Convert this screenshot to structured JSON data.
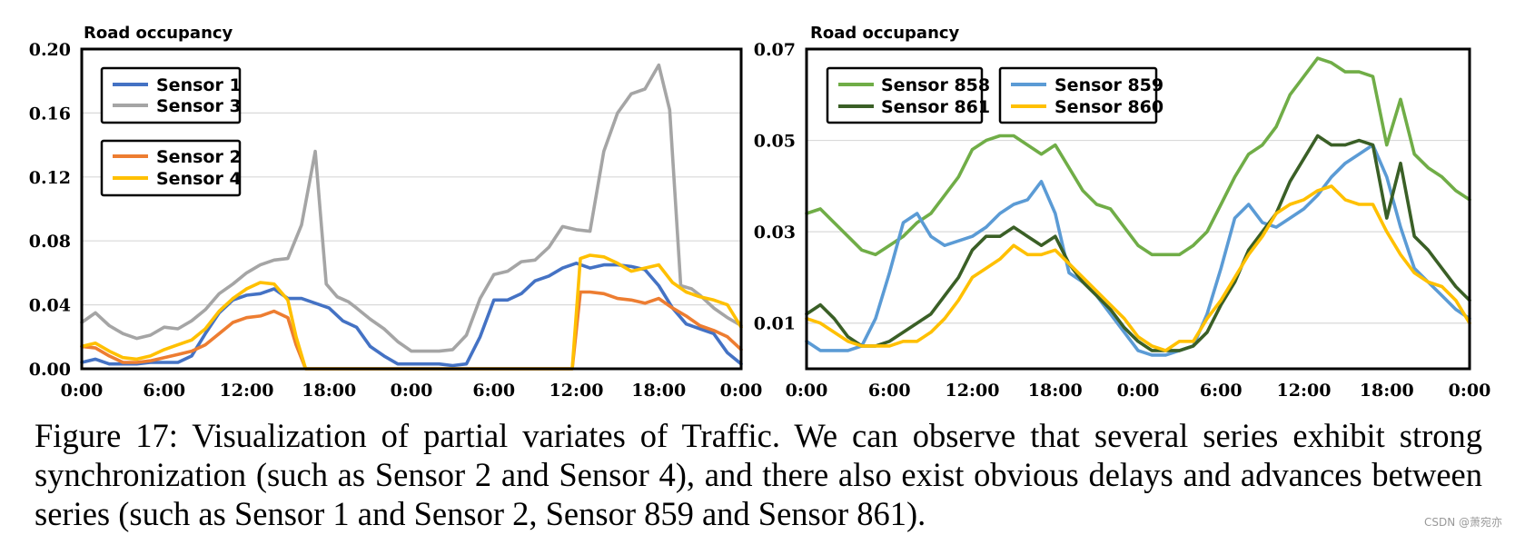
{
  "chart_data": [
    {
      "type": "line",
      "ylabel": "Road occupancy",
      "ylim": [
        0,
        0.2
      ],
      "yticks": [
        "0.00",
        "0.04",
        "0.08",
        "0.12",
        "0.16",
        "0.20"
      ],
      "ytick_values": [
        0,
        0.04,
        0.08,
        0.12,
        0.16,
        0.2
      ],
      "xticks": [
        "0:00",
        "6:00",
        "12:00",
        "18:00",
        "0:00",
        "6:00",
        "12:00",
        "18:00",
        "0:00"
      ],
      "x_hours": [
        0,
        6,
        12,
        18,
        24,
        30,
        36,
        42,
        48
      ],
      "legend_groups": [
        [
          "Sensor 1",
          "Sensor 3"
        ],
        [
          "Sensor 2",
          "Sensor 4"
        ]
      ],
      "series": [
        {
          "name": "Sensor 1",
          "color": "#4472c4",
          "x": [
            0,
            1,
            2,
            3,
            4,
            5,
            6,
            7,
            8,
            9,
            10,
            11,
            12,
            13,
            14,
            15,
            16,
            17,
            18,
            19,
            20,
            21,
            22,
            23,
            24,
            25,
            26,
            27,
            28,
            29,
            30,
            31,
            32,
            33,
            34,
            35,
            36,
            37,
            38,
            39,
            40,
            41,
            42,
            43,
            44,
            45,
            46,
            47,
            48
          ],
          "values": [
            0.004,
            0.006,
            0.003,
            0.003,
            0.003,
            0.004,
            0.004,
            0.004,
            0.008,
            0.022,
            0.035,
            0.043,
            0.046,
            0.047,
            0.05,
            0.044,
            0.044,
            0.041,
            0.038,
            0.03,
            0.026,
            0.014,
            0.008,
            0.003,
            0.003,
            0.003,
            0.003,
            0.002,
            0.003,
            0.02,
            0.043,
            0.043,
            0.047,
            0.055,
            0.058,
            0.063,
            0.066,
            0.063,
            0.065,
            0.065,
            0.064,
            0.062,
            0.052,
            0.038,
            0.028,
            0.025,
            0.022,
            0.01,
            0.003
          ]
        },
        {
          "name": "Sensor 3",
          "color": "#a5a5a5",
          "x": [
            0,
            1,
            2,
            3,
            4,
            5,
            6,
            7,
            8,
            9,
            10,
            11,
            12,
            13,
            14,
            15,
            16,
            17,
            17.8,
            18.6,
            19.4,
            20,
            21,
            22,
            23,
            24,
            25,
            26,
            27,
            28,
            29,
            30,
            31,
            32,
            33,
            34,
            35,
            36,
            37,
            38,
            39,
            40,
            41,
            42,
            42.8,
            43.6,
            44.4,
            45,
            46,
            47,
            48
          ],
          "values": [
            0.029,
            0.035,
            0.027,
            0.022,
            0.019,
            0.021,
            0.026,
            0.025,
            0.03,
            0.037,
            0.047,
            0.053,
            0.06,
            0.065,
            0.068,
            0.069,
            0.09,
            0.136,
            0.053,
            0.045,
            0.042,
            0.038,
            0.031,
            0.025,
            0.017,
            0.011,
            0.011,
            0.011,
            0.012,
            0.021,
            0.044,
            0.059,
            0.061,
            0.067,
            0.068,
            0.076,
            0.089,
            0.087,
            0.086,
            0.136,
            0.16,
            0.172,
            0.175,
            0.19,
            0.162,
            0.052,
            0.05,
            0.046,
            0.038,
            0.032,
            0.027
          ]
        },
        {
          "name": "Sensor 2",
          "color": "#ed7d31",
          "x": [
            0,
            1,
            2,
            3,
            4,
            5,
            6,
            7,
            8,
            9,
            10,
            11,
            12,
            13,
            14,
            15,
            15.6,
            16.3,
            35.7,
            36.3,
            37,
            38,
            39,
            40,
            41,
            42,
            43,
            44,
            45,
            46,
            47,
            48
          ],
          "values": [
            0.014,
            0.013,
            0.008,
            0.004,
            0.004,
            0.005,
            0.007,
            0.009,
            0.011,
            0.015,
            0.022,
            0.029,
            0.032,
            0.033,
            0.036,
            0.032,
            0.015,
            0,
            0,
            0.048,
            0.048,
            0.047,
            0.044,
            0.043,
            0.041,
            0.044,
            0.038,
            0.033,
            0.027,
            0.024,
            0.02,
            0.012
          ]
        },
        {
          "name": "Sensor 4",
          "color": "#ffc000",
          "x": [
            0,
            1,
            2,
            3,
            4,
            5,
            6,
            7,
            8,
            9,
            10,
            11,
            12,
            13,
            14,
            15,
            15.6,
            16.3,
            35.7,
            36.3,
            37,
            38,
            39,
            40,
            41,
            42,
            43,
            44,
            45,
            46,
            47,
            48
          ],
          "values": [
            0.014,
            0.016,
            0.011,
            0.007,
            0.006,
            0.008,
            0.012,
            0.015,
            0.018,
            0.025,
            0.036,
            0.044,
            0.05,
            0.054,
            0.053,
            0.043,
            0.02,
            0,
            0,
            0.069,
            0.071,
            0.07,
            0.066,
            0.061,
            0.063,
            0.065,
            0.054,
            0.048,
            0.045,
            0.043,
            0.04,
            0.026
          ]
        }
      ]
    },
    {
      "type": "line",
      "ylabel": "Road occupancy",
      "ylim": [
        0,
        0.07
      ],
      "yticks": [
        "0.01",
        "0.03",
        "0.05",
        "0.07"
      ],
      "ytick_values": [
        0.01,
        0.03,
        0.05,
        0.07
      ],
      "xticks": [
        "0:00",
        "6:00",
        "12:00",
        "18:00",
        "0:00",
        "6:00",
        "12:00",
        "18:00",
        "0:00"
      ],
      "x_hours": [
        0,
        6,
        12,
        18,
        24,
        30,
        36,
        42,
        48
      ],
      "legend_groups": [
        [
          "Sensor 858",
          "Sensor 861"
        ],
        [
          "Sensor 859",
          "Sensor 860"
        ]
      ],
      "series": [
        {
          "name": "Sensor 858",
          "color": "#70ad47",
          "x": [
            0,
            1,
            2,
            3,
            4,
            5,
            6,
            7,
            8,
            9,
            10,
            11,
            12,
            13,
            14,
            15,
            16,
            17,
            18,
            19,
            20,
            21,
            22,
            23,
            24,
            25,
            26,
            27,
            28,
            29,
            30,
            31,
            32,
            33,
            34,
            35,
            36,
            37,
            38,
            39,
            40,
            41,
            42,
            43,
            44,
            45,
            46,
            47,
            48
          ],
          "values": [
            0.034,
            0.035,
            0.032,
            0.029,
            0.026,
            0.025,
            0.027,
            0.029,
            0.032,
            0.034,
            0.038,
            0.042,
            0.048,
            0.05,
            0.051,
            0.051,
            0.049,
            0.047,
            0.049,
            0.044,
            0.039,
            0.036,
            0.035,
            0.031,
            0.027,
            0.025,
            0.025,
            0.025,
            0.027,
            0.03,
            0.036,
            0.042,
            0.047,
            0.049,
            0.053,
            0.06,
            0.064,
            0.068,
            0.067,
            0.065,
            0.065,
            0.064,
            0.049,
            0.059,
            0.047,
            0.044,
            0.042,
            0.039,
            0.037
          ]
        },
        {
          "name": "Sensor 859",
          "color": "#5b9bd5",
          "x": [
            0,
            1,
            2,
            3,
            4,
            5,
            6,
            7,
            8,
            9,
            10,
            11,
            12,
            13,
            14,
            15,
            16,
            17,
            18,
            19,
            20,
            21,
            22,
            23,
            24,
            25,
            26,
            27,
            28,
            29,
            30,
            31,
            32,
            33,
            34,
            35,
            36,
            37,
            38,
            39,
            40,
            41,
            42,
            43,
            44,
            45,
            46,
            47,
            48
          ],
          "values": [
            0.006,
            0.004,
            0.004,
            0.004,
            0.005,
            0.011,
            0.021,
            0.032,
            0.034,
            0.029,
            0.027,
            0.028,
            0.029,
            0.031,
            0.034,
            0.036,
            0.037,
            0.041,
            0.034,
            0.021,
            0.019,
            0.016,
            0.012,
            0.008,
            0.004,
            0.003,
            0.003,
            0.004,
            0.005,
            0.012,
            0.022,
            0.033,
            0.036,
            0.032,
            0.031,
            0.033,
            0.035,
            0.038,
            0.042,
            0.045,
            0.047,
            0.049,
            0.042,
            0.031,
            0.022,
            0.019,
            0.016,
            0.013,
            0.011
          ]
        },
        {
          "name": "Sensor 861",
          "color": "#3a5f26",
          "x": [
            0,
            1,
            2,
            3,
            4,
            5,
            6,
            7,
            8,
            9,
            10,
            11,
            12,
            13,
            14,
            15,
            16,
            17,
            18,
            19,
            20,
            21,
            22,
            23,
            24,
            25,
            26,
            27,
            28,
            29,
            30,
            31,
            32,
            33,
            34,
            35,
            36,
            37,
            38,
            39,
            40,
            41,
            42,
            43,
            44,
            45,
            46,
            47,
            48
          ],
          "values": [
            0.012,
            0.014,
            0.011,
            0.007,
            0.005,
            0.005,
            0.006,
            0.008,
            0.01,
            0.012,
            0.016,
            0.02,
            0.026,
            0.029,
            0.029,
            0.031,
            0.029,
            0.027,
            0.029,
            0.023,
            0.019,
            0.016,
            0.013,
            0.009,
            0.006,
            0.004,
            0.004,
            0.004,
            0.005,
            0.008,
            0.014,
            0.019,
            0.026,
            0.03,
            0.034,
            0.041,
            0.046,
            0.051,
            0.049,
            0.049,
            0.05,
            0.049,
            0.033,
            0.045,
            0.029,
            0.026,
            0.022,
            0.018,
            0.015
          ]
        },
        {
          "name": "Sensor 860",
          "color": "#ffc000",
          "x": [
            0,
            1,
            2,
            3,
            4,
            5,
            6,
            7,
            8,
            9,
            10,
            11,
            12,
            13,
            14,
            15,
            16,
            17,
            18,
            19,
            20,
            21,
            22,
            23,
            24,
            25,
            26,
            27,
            28,
            29,
            30,
            31,
            32,
            33,
            34,
            35,
            36,
            37,
            38,
            39,
            40,
            41,
            42,
            43,
            44,
            45,
            46,
            47,
            48
          ],
          "values": [
            0.011,
            0.01,
            0.008,
            0.006,
            0.005,
            0.005,
            0.005,
            0.006,
            0.006,
            0.008,
            0.011,
            0.015,
            0.02,
            0.022,
            0.024,
            0.027,
            0.025,
            0.025,
            0.026,
            0.023,
            0.02,
            0.017,
            0.014,
            0.011,
            0.007,
            0.005,
            0.004,
            0.006,
            0.006,
            0.011,
            0.015,
            0.02,
            0.025,
            0.029,
            0.034,
            0.036,
            0.037,
            0.039,
            0.04,
            0.037,
            0.036,
            0.036,
            0.03,
            0.025,
            0.021,
            0.019,
            0.018,
            0.015,
            0.01
          ]
        }
      ]
    }
  ],
  "caption": {
    "text": "Figure 17: Visualization of partial variates of Traffic. We can observe that several series exhibit strong synchronization (such as Sensor 2 and Sensor 4), and there also exist obvious delays and advances between series (such as Sensor 1 and Sensor 2, Sensor 859 and Sensor 861)."
  },
  "watermark": {
    "text": "CSDN @萧宛亦"
  }
}
